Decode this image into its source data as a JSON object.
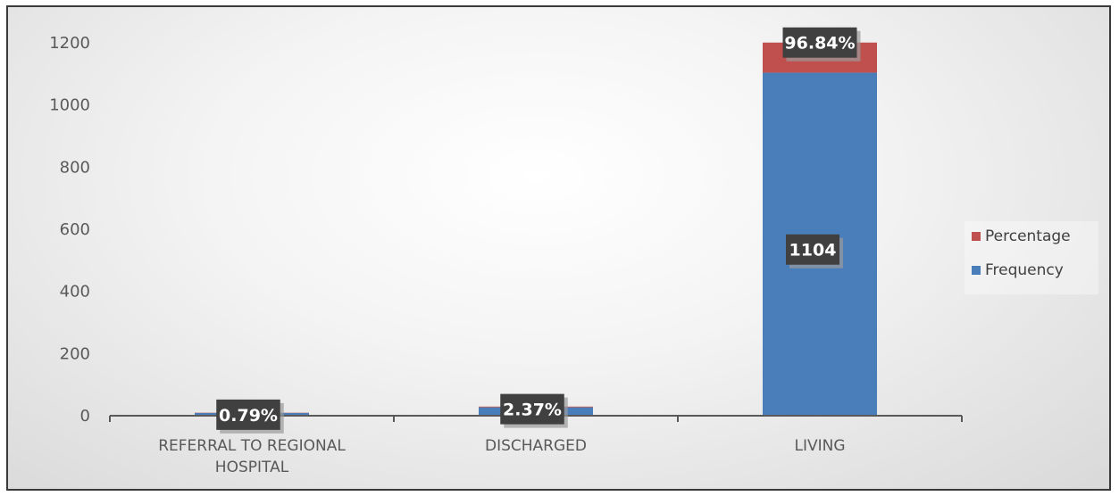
{
  "chart_data": {
    "type": "bar",
    "stacked": true,
    "categories": [
      "REFERRAL TO REGIONAL HOSPITAL",
      "DISCHARGED",
      "LIVING"
    ],
    "series": [
      {
        "name": "Frequency",
        "values": [
          9,
          27,
          1104
        ],
        "color": "#4a7ebb"
      },
      {
        "name": "Percentage",
        "values": [
          0.79,
          2.37,
          96.84
        ],
        "color": "#c0504d"
      }
    ],
    "data_labels": {
      "Frequency": [
        "",
        "",
        "1104"
      ],
      "Percentage": [
        "0.79%",
        "2.37%",
        "96.84%"
      ]
    },
    "yticks": [
      "0",
      "200",
      "400",
      "600",
      "800",
      "1000",
      "1200"
    ],
    "ylim": [
      0,
      1200
    ],
    "legend": "right",
    "legend_order": [
      "Percentage",
      "Frequency"
    ],
    "grid": false
  }
}
